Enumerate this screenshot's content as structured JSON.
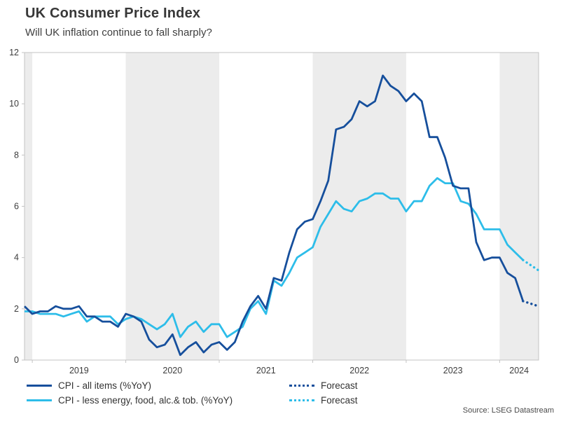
{
  "header": {
    "title": "UK Consumer Price Index",
    "subtitle": "Will UK inflation continue to fall sharply?"
  },
  "source": "Source: LSEG Datastream",
  "colors": {
    "all_items": "#164f9c",
    "core": "#2dbde9",
    "band": "#ececec",
    "axis": "#c3c3c3",
    "text": "#3c3c3c"
  },
  "legend": [
    {
      "label": "CPI - all items (%YoY)",
      "color_key": "all_items",
      "style": "solid"
    },
    {
      "label": "CPI - less energy, food, alc.& tob. (%YoY)",
      "color_key": "core",
      "style": "solid"
    },
    {
      "label": "Forecast",
      "color_key": "all_items",
      "style": "dotted"
    },
    {
      "label": "Forecast",
      "color_key": "core",
      "style": "dotted"
    }
  ],
  "chart_data": {
    "type": "line",
    "title": "UK Consumer Price Index",
    "subtitle": "Will UK inflation continue to fall sharply?",
    "frequency": "monthly",
    "x_start": {
      "year": 2018,
      "month": 12
    },
    "x_end_forecast": {
      "year": 2024,
      "month": 6
    },
    "ylim": [
      0,
      12
    ],
    "ytick_step": 2,
    "xtick_labels": [
      "2019",
      "2020",
      "2021",
      "2022",
      "2023",
      "2024"
    ],
    "background_bands": "alternating gray shading on even calendar years",
    "legend_position": "bottom-left",
    "grid": false,
    "series": [
      {
        "name": "CPI - all items (%YoY)",
        "values": [
          2.1,
          1.8,
          1.9,
          1.9,
          2.1,
          2.0,
          2.0,
          2.1,
          1.7,
          1.7,
          1.5,
          1.5,
          1.3,
          1.8,
          1.7,
          1.5,
          0.8,
          0.5,
          0.6,
          1.0,
          0.2,
          0.5,
          0.7,
          0.3,
          0.6,
          0.7,
          0.4,
          0.7,
          1.5,
          2.1,
          2.5,
          2.0,
          3.2,
          3.1,
          4.2,
          5.1,
          5.4,
          5.5,
          6.2,
          7.0,
          9.0,
          9.1,
          9.4,
          10.1,
          9.9,
          10.1,
          11.1,
          10.7,
          10.5,
          10.1,
          10.4,
          10.1,
          8.7,
          8.7,
          7.9,
          6.8,
          6.7,
          6.7,
          4.6,
          3.9,
          4.0,
          4.0,
          3.4,
          3.2,
          2.3
        ],
        "forecast": [
          2.2,
          2.1
        ]
      },
      {
        "name": "CPI - less energy, food, alc.& tob. (%YoY)",
        "values": [
          1.9,
          1.9,
          1.8,
          1.8,
          1.8,
          1.7,
          1.8,
          1.9,
          1.5,
          1.7,
          1.7,
          1.7,
          1.4,
          1.6,
          1.7,
          1.6,
          1.4,
          1.2,
          1.4,
          1.8,
          0.9,
          1.3,
          1.5,
          1.1,
          1.4,
          1.4,
          0.9,
          1.1,
          1.3,
          2.0,
          2.3,
          1.8,
          3.1,
          2.9,
          3.4,
          4.0,
          4.2,
          4.4,
          5.2,
          5.7,
          6.2,
          5.9,
          5.8,
          6.2,
          6.3,
          6.5,
          6.5,
          6.3,
          6.3,
          5.8,
          6.2,
          6.2,
          6.8,
          7.1,
          6.9,
          6.9,
          6.2,
          6.1,
          5.7,
          5.1,
          5.1,
          5.1,
          4.5,
          4.2,
          3.9
        ],
        "forecast": [
          3.7,
          3.5
        ]
      }
    ]
  }
}
